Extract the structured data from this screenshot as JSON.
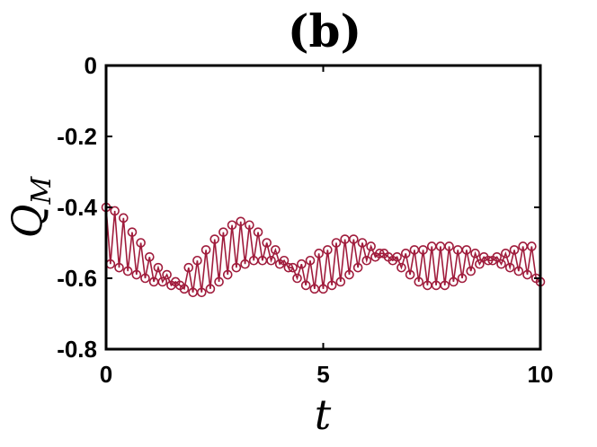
{
  "chart_data": {
    "type": "line",
    "title": "(b)",
    "xlabel": "t",
    "ylabel": "Q",
    "ylabel_subscript": "M",
    "xlim": [
      0,
      10
    ],
    "ylim": [
      -0.8,
      0
    ],
    "xticks": [
      "0",
      "5",
      "10"
    ],
    "yticks": [
      "0",
      "-0.2",
      "-0.4",
      "-0.6",
      "-0.8"
    ],
    "xtick_values": [
      0,
      5,
      10
    ],
    "ytick_values": [
      0,
      -0.2,
      -0.4,
      -0.6,
      -0.8
    ],
    "grid": false,
    "series": [
      {
        "color": "#a01c3c",
        "marker": "open-circle",
        "x": [
          0.0,
          0.1,
          0.2,
          0.3,
          0.4,
          0.5,
          0.6,
          0.7,
          0.8,
          0.9,
          1.0,
          1.1,
          1.2,
          1.3,
          1.4,
          1.5,
          1.6,
          1.7,
          1.8,
          1.9,
          2.0,
          2.1,
          2.2,
          2.3,
          2.4,
          2.5,
          2.6,
          2.7,
          2.8,
          2.9,
          3.0,
          3.1,
          3.2,
          3.3,
          3.4,
          3.5,
          3.6,
          3.7,
          3.8,
          3.9,
          4.0,
          4.1,
          4.2,
          4.3,
          4.4,
          4.5,
          4.6,
          4.7,
          4.8,
          4.9,
          5.0,
          5.1,
          5.2,
          5.3,
          5.4,
          5.5,
          5.6,
          5.7,
          5.8,
          5.9,
          6.0,
          6.1,
          6.2,
          6.3,
          6.4,
          6.5,
          6.6,
          6.7,
          6.8,
          6.9,
          7.0,
          7.1,
          7.2,
          7.3,
          7.4,
          7.5,
          7.6,
          7.7,
          7.8,
          7.9,
          8.0,
          8.1,
          8.2,
          8.3,
          8.4,
          8.5,
          8.6,
          8.7,
          8.8,
          8.9,
          9.0,
          9.1,
          9.2,
          9.3,
          9.4,
          9.5,
          9.6,
          9.7,
          9.8,
          9.9,
          10.0
        ],
        "y": [
          -0.4,
          -0.56,
          -0.41,
          -0.57,
          -0.43,
          -0.58,
          -0.47,
          -0.59,
          -0.5,
          -0.6,
          -0.54,
          -0.61,
          -0.57,
          -0.61,
          -0.59,
          -0.62,
          -0.61,
          -0.62,
          -0.63,
          -0.57,
          -0.64,
          -0.55,
          -0.64,
          -0.52,
          -0.63,
          -0.49,
          -0.61,
          -0.47,
          -0.59,
          -0.45,
          -0.57,
          -0.44,
          -0.56,
          -0.45,
          -0.55,
          -0.47,
          -0.55,
          -0.5,
          -0.55,
          -0.52,
          -0.56,
          -0.55,
          -0.57,
          -0.57,
          -0.6,
          -0.56,
          -0.62,
          -0.55,
          -0.63,
          -0.53,
          -0.63,
          -0.52,
          -0.62,
          -0.5,
          -0.61,
          -0.49,
          -0.59,
          -0.49,
          -0.57,
          -0.5,
          -0.55,
          -0.51,
          -0.54,
          -0.53,
          -0.53,
          -0.54,
          -0.55,
          -0.54,
          -0.57,
          -0.53,
          -0.59,
          -0.52,
          -0.61,
          -0.52,
          -0.62,
          -0.51,
          -0.62,
          -0.51,
          -0.62,
          -0.51,
          -0.61,
          -0.52,
          -0.6,
          -0.52,
          -0.58,
          -0.53,
          -0.56,
          -0.54,
          -0.55,
          -0.55,
          -0.54,
          -0.56,
          -0.53,
          -0.57,
          -0.52,
          -0.58,
          -0.51,
          -0.59,
          -0.51,
          -0.6,
          -0.61
        ]
      }
    ]
  }
}
